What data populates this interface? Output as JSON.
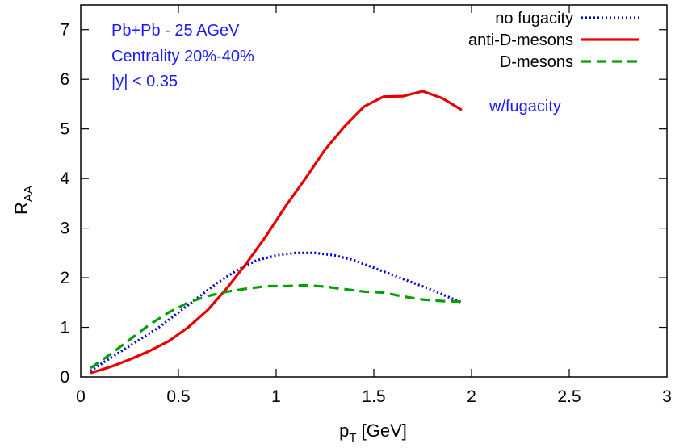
{
  "chart_data": {
    "type": "line",
    "title": "",
    "xlabel": {
      "main": "p",
      "sub": "T",
      "rest": " [GeV]"
    },
    "ylabel": {
      "main": "R",
      "sub": "AA"
    },
    "xlim": [
      0,
      3
    ],
    "ylim": [
      0,
      7.5
    ],
    "xticks": [
      "0",
      "0.5",
      "1",
      "1.5",
      "2",
      "2.5",
      "3"
    ],
    "yticks": [
      "0",
      "1",
      "2",
      "3",
      "4",
      "5",
      "6",
      "7"
    ],
    "grid": false,
    "legend_position": "top-right",
    "annotations": [
      "Pb+Pb - 25 AGeV",
      "Centrality 20%-40%",
      "|y| < 0.35",
      "w/fugacity"
    ],
    "series": [
      {
        "name": "no fugacity",
        "color": "#0000cc",
        "style": "dotted",
        "x": [
          0.05,
          0.1,
          0.2,
          0.3,
          0.4,
          0.5,
          0.6,
          0.7,
          0.8,
          0.9,
          1.0,
          1.1,
          1.2,
          1.3,
          1.4,
          1.5,
          1.6,
          1.7,
          1.8,
          1.9,
          1.95
        ],
        "y": [
          0.12,
          0.25,
          0.5,
          0.75,
          1.0,
          1.3,
          1.6,
          1.9,
          2.15,
          2.35,
          2.45,
          2.5,
          2.5,
          2.45,
          2.35,
          2.2,
          2.05,
          1.9,
          1.75,
          1.58,
          1.5
        ]
      },
      {
        "name": "anti-D-mesons",
        "color": "#e60000",
        "style": "solid",
        "x": [
          0.05,
          0.15,
          0.25,
          0.35,
          0.45,
          0.55,
          0.65,
          0.75,
          0.85,
          0.95,
          1.05,
          1.15,
          1.25,
          1.35,
          1.45,
          1.55,
          1.65,
          1.75,
          1.85,
          1.95
        ],
        "y": [
          0.08,
          0.2,
          0.35,
          0.52,
          0.72,
          1.0,
          1.35,
          1.8,
          2.3,
          2.85,
          3.45,
          4.0,
          4.58,
          5.05,
          5.45,
          5.65,
          5.66,
          5.76,
          5.62,
          5.38
        ]
      },
      {
        "name": "D-mesons",
        "color": "#00a000",
        "style": "dashed",
        "x": [
          0.05,
          0.15,
          0.25,
          0.35,
          0.45,
          0.55,
          0.65,
          0.75,
          0.85,
          0.95,
          1.05,
          1.15,
          1.25,
          1.35,
          1.45,
          1.55,
          1.65,
          1.75,
          1.85,
          1.95
        ],
        "y": [
          0.18,
          0.45,
          0.75,
          1.05,
          1.3,
          1.5,
          1.63,
          1.72,
          1.78,
          1.83,
          1.83,
          1.85,
          1.82,
          1.77,
          1.72,
          1.7,
          1.62,
          1.56,
          1.53,
          1.52
        ]
      }
    ]
  }
}
